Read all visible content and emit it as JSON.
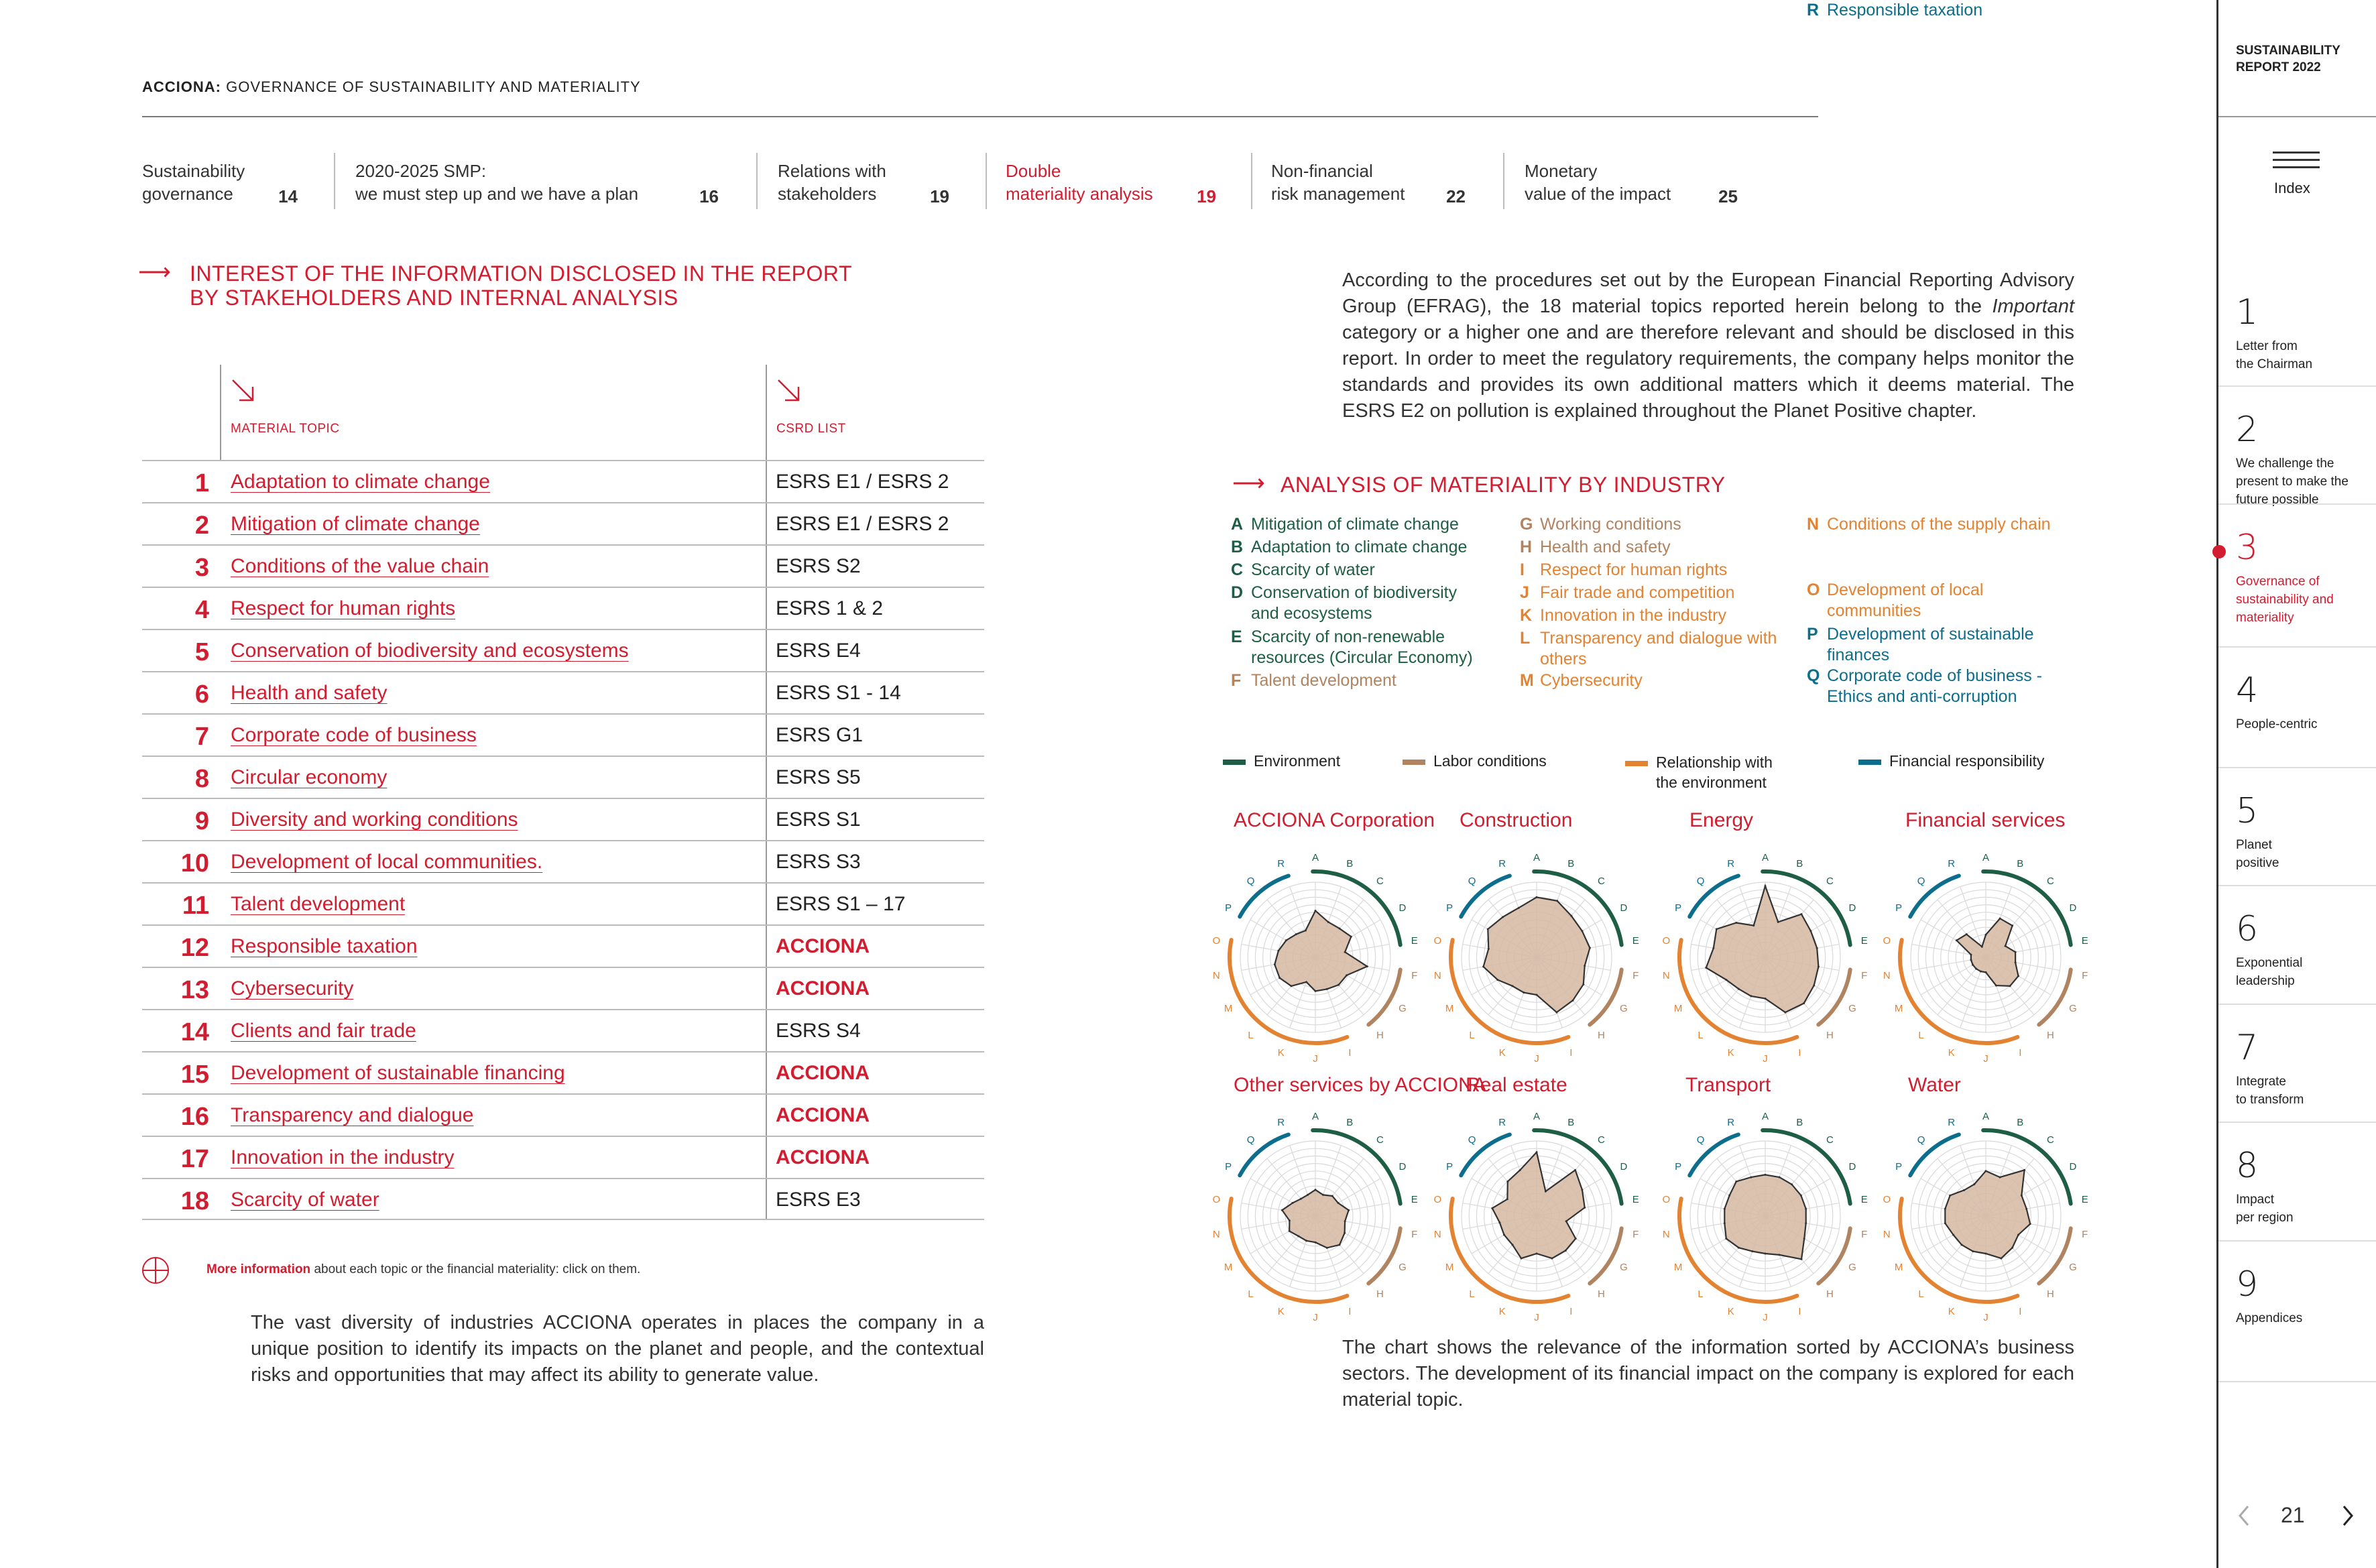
{
  "header": {
    "brand": "ACCIONA:",
    "title": "GOVERNANCE OF SUSTAINABILITY AND MATERIALITY"
  },
  "nav": [
    {
      "l1": "Sustainability",
      "l2": "governance",
      "num": "14"
    },
    {
      "l1": "2020-2025 SMP:",
      "l2": "we must step up and we have a plan",
      "num": "16"
    },
    {
      "l1": "Relations with",
      "l2": "stakeholders",
      "num": "19"
    },
    {
      "l1": "Double",
      "l2": "materiality analysis",
      "num": "19"
    },
    {
      "l1": "Non-financial",
      "l2": "risk management",
      "num": "22"
    },
    {
      "l1": "Monetary",
      "l2": "value of the impact",
      "num": "25"
    }
  ],
  "left": {
    "title1": "INTEREST OF THE INFORMATION DISCLOSED IN THE REPORT",
    "title2": "BY STAKEHOLDERS AND INTERNAL ANALYSIS",
    "col1": "MATERIAL TOPIC",
    "col2": "CSRD LIST",
    "rows": [
      {
        "n": "1",
        "topic": "Adaptation to climate change ",
        "csrd": "ESRS E1 / ESRS 2"
      },
      {
        "n": "2",
        "topic": "Mitigation of climate change",
        "csrd": "ESRS E1 / ESRS 2"
      },
      {
        "n": "3",
        "topic": "Conditions of the value chain",
        "csrd": "ESRS S2"
      },
      {
        "n": "4",
        "topic": "Respect for human rights",
        "csrd": "ESRS 1 & 2"
      },
      {
        "n": "5",
        "topic": "Conservation of biodiversity and ecosystems",
        "csrd": "ESRS E4"
      },
      {
        "n": "6",
        "topic": "Health and safety",
        "csrd": "ESRS S1 - 14"
      },
      {
        "n": "7",
        "topic": "Corporate code of business",
        "csrd": "ESRS G1"
      },
      {
        "n": "8",
        "topic": "Circular economy",
        "csrd": "ESRS S5"
      },
      {
        "n": "9",
        "topic": "Diversity and working conditions",
        "csrd": "ESRS S1"
      },
      {
        "n": "10",
        "topic": "Development of local communities.",
        "csrd": "ESRS S3"
      },
      {
        "n": "11",
        "topic": "Talent development",
        "csrd": "ESRS S1 – 17"
      },
      {
        "n": "12",
        "topic": "Responsible taxation",
        "csrd": "ACCIONA"
      },
      {
        "n": "13",
        "topic": "Cybersecurity",
        "csrd": "ACCIONA"
      },
      {
        "n": "14",
        "topic": "Clients and fair trade",
        "csrd": "ESRS S4"
      },
      {
        "n": "15",
        "topic": "Development of sustainable financing",
        "csrd": "ACCIONA"
      },
      {
        "n": "16",
        "topic": "Transparency and dialogue",
        "csrd": "ACCIONA"
      },
      {
        "n": "17",
        "topic": "Innovation in the industry",
        "csrd": "ACCIONA"
      },
      {
        "n": "18",
        "topic": "Scarcity of water",
        "csrd": "ESRS E3"
      }
    ],
    "more_link": "More information",
    "more_rest": " about each topic or the financial materiality: click on them.",
    "para": "The vast diversity of industries ACCIONA operates in places the company in a unique position to identify its impacts on the planet and people, and the contextual risks and opportunities that may affect its ability to generate value."
  },
  "right": {
    "intro_a": "According to the procedures set out by the European Financial Reporting Advisory Group (EFRAG), the 18 material topics reported herein belong to the ",
    "intro_em": "Important",
    "intro_b": " category or a higher one and are therefore relevant and should be disclosed in this report. In order to meet the regulatory requirements, the company helps monitor the standards and provides its own additional matters which it deems material. The ESRS E2 on pollution is explained throughout the Planet Positive chapter.",
    "title": "ANALYSIS OF MATERIALITY BY INDUSTRY",
    "legend": [
      {
        "k": "A",
        "t": "Mitigation of climate change",
        "g": "env"
      },
      {
        "k": "B",
        "t": "Adaptation to climate change",
        "g": "env"
      },
      {
        "k": "C",
        "t": "Scarcity of water",
        "g": "env"
      },
      {
        "k": "D",
        "t": "Conservation of biodiversity",
        "t2": "and ecosystems",
        "g": "env"
      },
      {
        "k": "E",
        "t": "Scarcity of non-renewable",
        "t2": "resources (Circular Economy)",
        "g": "env"
      },
      {
        "k": "F",
        "t": "Talent development",
        "g": "lab"
      },
      {
        "k": "G",
        "t": "Working conditions",
        "g": "lab"
      },
      {
        "k": "H",
        "t": "Health and safety",
        "g": "lab"
      },
      {
        "k": "I",
        "t": "Respect for human rights",
        "g": "rel"
      },
      {
        "k": "J",
        "t": "Fair trade and competition",
        "g": "rel"
      },
      {
        "k": "K",
        "t": "Innovation in the industry",
        "g": "rel"
      },
      {
        "k": "L",
        "t": "Transparency and dialogue with",
        "t2": "others",
        "g": "rel"
      },
      {
        "k": "M",
        "t": "Cybersecurity",
        "g": "rel"
      },
      {
        "k": "N",
        "t": "Conditions of the supply chain",
        "g": "rel"
      },
      {
        "k": "O",
        "t": "Development of local",
        "t2": "communities",
        "g": "rel"
      },
      {
        "k": "P",
        "t": "Development of sustainable",
        "t2": "finances",
        "g": "fin"
      },
      {
        "k": "Q",
        "t": "Corporate code of business -",
        "t2": "Ethics and anti-corruption",
        "g": "fin"
      },
      {
        "k": "R",
        "t": "Responsible taxation",
        "g": "fin"
      }
    ],
    "categories": [
      {
        "t": "Environment",
        "g": "env"
      },
      {
        "t": "Labor conditions",
        "g": "lab"
      },
      {
        "t": "Relationship with",
        "t2": "the environment",
        "g": "rel"
      },
      {
        "t": "Financial responsibility",
        "g": "fin"
      }
    ],
    "colors": {
      "env": "#1d5e45",
      "lab": "#b08361",
      "rel": "#e38231",
      "fin": "#0d6d8d",
      "fill": "#d6b8a2",
      "accent": "#d21c2f"
    },
    "outro": "The chart shows the relevance of the information sorted by ACCIONA’s business sectors. The development of its financial impact on the company is explored for each material topic."
  },
  "chart_data": [
    {
      "type": "radar",
      "title": "ACCIONA Corporation",
      "axes": [
        "A",
        "B",
        "C",
        "D",
        "E",
        "F",
        "G",
        "H",
        "I",
        "J",
        "K",
        "L",
        "M",
        "N",
        "O",
        "P",
        "Q",
        "R"
      ],
      "values": [
        0.62,
        0.5,
        0.5,
        0.55,
        0.4,
        0.7,
        0.48,
        0.48,
        0.45,
        0.45,
        0.35,
        0.5,
        0.55,
        0.55,
        0.5,
        0.45,
        0.4,
        0.38
      ]
    },
    {
      "type": "radar",
      "title": "Construction",
      "axes": [
        "A",
        "B",
        "C",
        "D",
        "E",
        "F",
        "G",
        "H",
        "I",
        "J",
        "K",
        "L",
        "M",
        "N",
        "O",
        "P",
        "Q",
        "R"
      ],
      "values": [
        0.8,
        0.8,
        0.72,
        0.7,
        0.72,
        0.65,
        0.72,
        0.75,
        0.78,
        0.5,
        0.5,
        0.5,
        0.6,
        0.72,
        0.65,
        0.75,
        0.7,
        0.7
      ]
    },
    {
      "type": "radar",
      "title": "Energy",
      "axes": [
        "A",
        "B",
        "C",
        "D",
        "E",
        "F",
        "G",
        "H",
        "I",
        "J",
        "K",
        "L",
        "M",
        "N",
        "O",
        "P",
        "Q",
        "R"
      ],
      "values": [
        0.95,
        0.5,
        0.75,
        0.7,
        0.7,
        0.72,
        0.75,
        0.8,
        0.78,
        0.55,
        0.55,
        0.55,
        0.6,
        0.8,
        0.7,
        0.75,
        0.6,
        0.45
      ]
    },
    {
      "type": "radar",
      "title": "Financial services",
      "axes": [
        "A",
        "B",
        "C",
        "D",
        "E",
        "F",
        "G",
        "H",
        "I",
        "J",
        "K",
        "L",
        "M",
        "N",
        "O",
        "P",
        "Q",
        "R"
      ],
      "values": [
        0.3,
        0.55,
        0.55,
        0.3,
        0.4,
        0.4,
        0.5,
        0.5,
        0.4,
        0.2,
        0.2,
        0.2,
        0.2,
        0.2,
        0.2,
        0.45,
        0.4,
        0.15
      ]
    },
    {
      "type": "radar",
      "title": "Other services by ACCIONA",
      "axes": [
        "A",
        "B",
        "C",
        "D",
        "E",
        "F",
        "G",
        "H",
        "I",
        "J",
        "K",
        "L",
        "M",
        "N",
        "O",
        "P",
        "Q",
        "R"
      ],
      "values": [
        0.35,
        0.3,
        0.35,
        0.35,
        0.45,
        0.4,
        0.45,
        0.5,
        0.45,
        0.35,
        0.35,
        0.35,
        0.4,
        0.35,
        0.45,
        0.35,
        0.3,
        0.3
      ]
    },
    {
      "type": "radar",
      "title": "Real estate",
      "axes": [
        "A",
        "B",
        "C",
        "D",
        "E",
        "F",
        "G",
        "H",
        "I",
        "J",
        "K",
        "L",
        "M",
        "N",
        "O",
        "P",
        "Q",
        "R"
      ],
      "values": [
        0.85,
        0.35,
        0.8,
        0.7,
        0.65,
        0.4,
        0.6,
        0.6,
        0.6,
        0.5,
        0.6,
        0.5,
        0.5,
        0.5,
        0.6,
        0.45,
        0.6,
        0.65
      ]
    },
    {
      "type": "radar",
      "title": "Transport",
      "axes": [
        "A",
        "B",
        "C",
        "D",
        "E",
        "F",
        "G",
        "H",
        "I",
        "J",
        "K",
        "L",
        "M",
        "N",
        "O",
        "P",
        "Q",
        "R"
      ],
      "values": [
        0.55,
        0.55,
        0.55,
        0.55,
        0.55,
        0.55,
        0.6,
        0.75,
        0.55,
        0.5,
        0.5,
        0.55,
        0.6,
        0.55,
        0.55,
        0.55,
        0.6,
        0.55
      ]
    },
    {
      "type": "radar",
      "title": "Water",
      "axes": [
        "A",
        "B",
        "C",
        "D",
        "E",
        "F",
        "G",
        "H",
        "I",
        "J",
        "K",
        "L",
        "M",
        "N",
        "O",
        "P",
        "Q",
        "R"
      ],
      "values": [
        0.6,
        0.55,
        0.8,
        0.55,
        0.55,
        0.6,
        0.5,
        0.55,
        0.6,
        0.5,
        0.5,
        0.5,
        0.5,
        0.55,
        0.55,
        0.55,
        0.45,
        0.45
      ]
    }
  ],
  "sidebar": {
    "report1": "SUSTAINABILITY",
    "report2": "REPORT 2022",
    "index": "Index",
    "items": [
      {
        "n": "1",
        "l": [
          "Letter from",
          "the Chairman"
        ]
      },
      {
        "n": "2",
        "l": [
          "We challenge the",
          "present to make the",
          "future possible"
        ]
      },
      {
        "n": "3",
        "l": [
          "Governance of",
          "sustainability and",
          "materiality"
        ]
      },
      {
        "n": "4",
        "l": [
          "People-centric"
        ]
      },
      {
        "n": "5",
        "l": [
          "Planet",
          "positive"
        ]
      },
      {
        "n": "6",
        "l": [
          "Exponential",
          "leadership"
        ]
      },
      {
        "n": "7",
        "l": [
          "Integrate",
          "to transform"
        ]
      },
      {
        "n": "8",
        "l": [
          "Impact",
          "per region"
        ]
      },
      {
        "n": "9",
        "l": [
          "Appendices"
        ]
      }
    ],
    "page": "21"
  }
}
